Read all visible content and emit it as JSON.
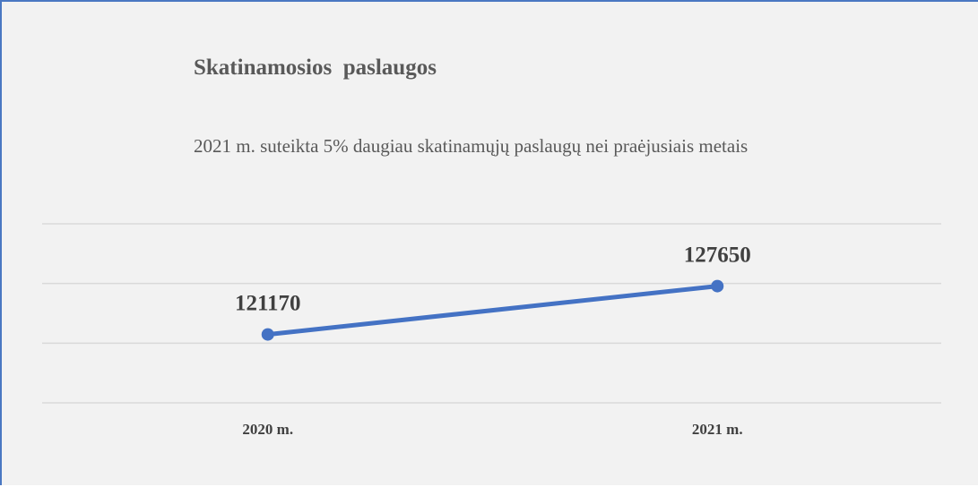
{
  "chart_data": {
    "type": "line",
    "title": "Skatinamosios  paslaugos",
    "subtitle": "2021 m. suteikta 5% daugiau skatinamųjų paslaugų nei praėjusiais metais",
    "categories": [
      "2020 m.",
      "2021 m."
    ],
    "series": [
      {
        "color": "#4472c4",
        "values": [
          121170,
          127650
        ]
      }
    ],
    "ylim": [
      112000,
      136000
    ],
    "yticks": [
      112000,
      120000,
      128000,
      136000
    ],
    "y_tick_labels": false,
    "grid": true,
    "data_labels": true
  }
}
